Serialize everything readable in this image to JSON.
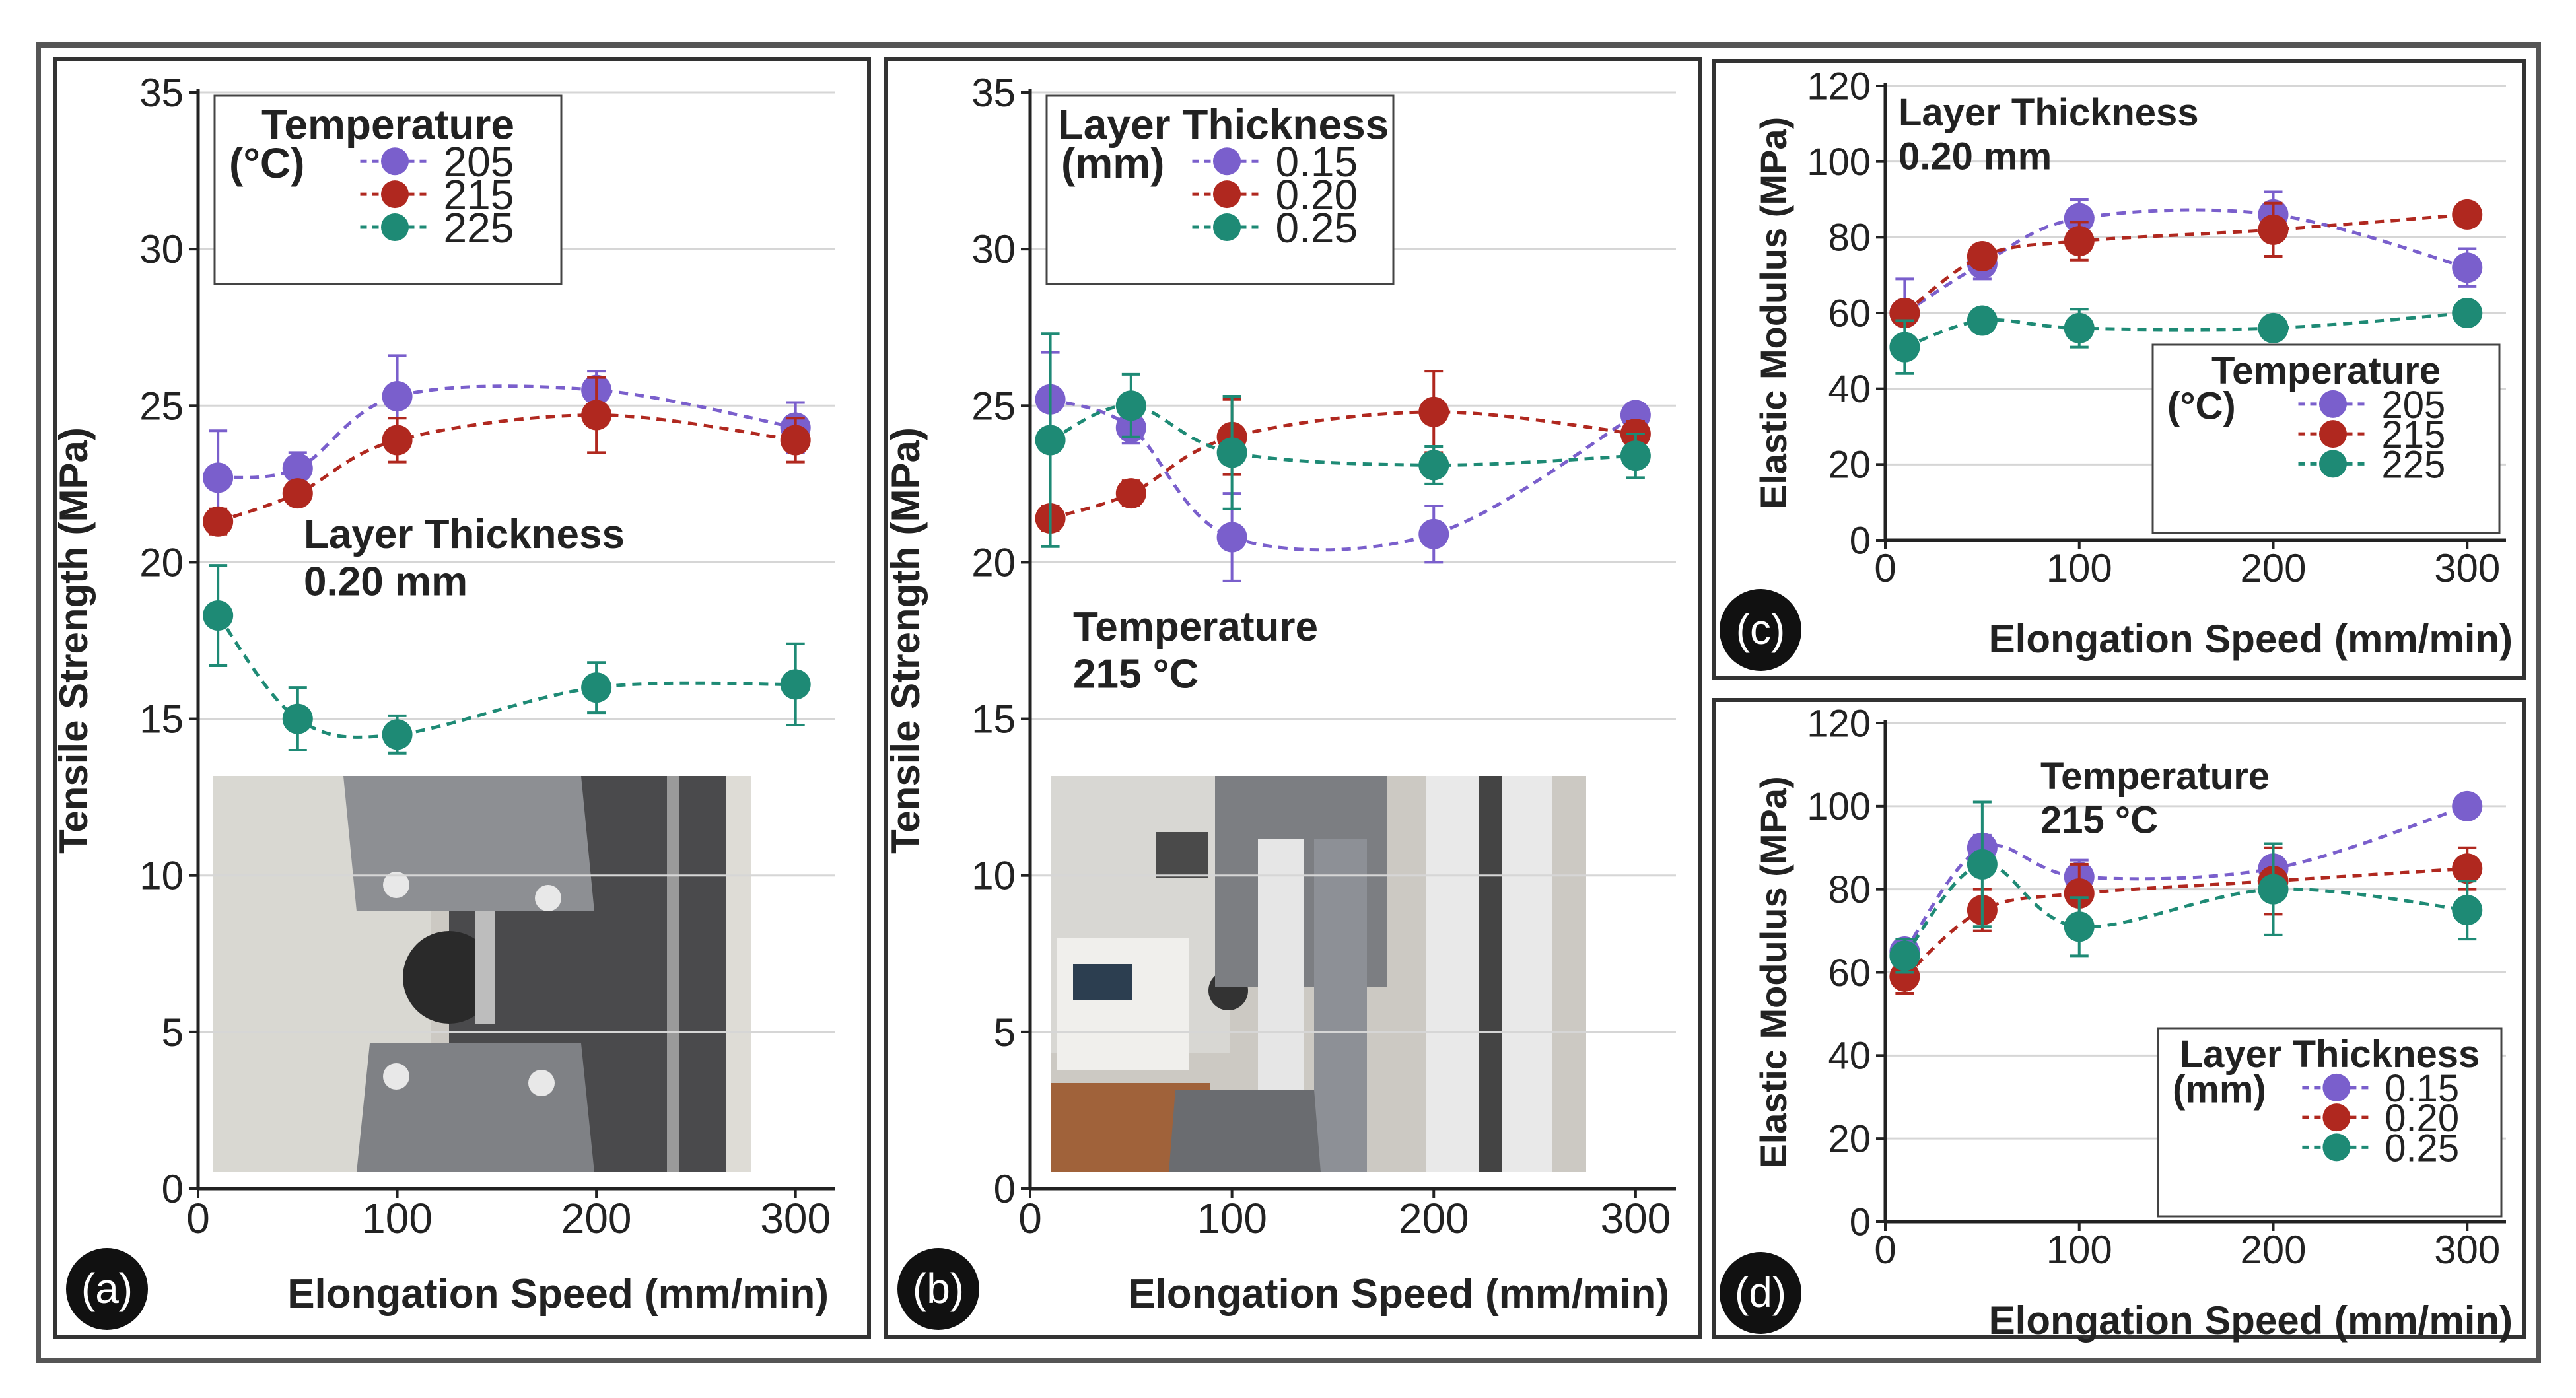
{
  "figure": {
    "panels": [
      "(a)",
      "(b)",
      "(c)",
      "(d)"
    ],
    "photo_captions": [
      "tensile test grips with specimen",
      "tensile testing machine with specimen"
    ]
  },
  "colors": {
    "series_1": "#7a5fcc",
    "series_2": "#b0281f",
    "series_3": "#1e8a75",
    "axis": "#222222",
    "grid": "#d6d6d6",
    "frame": "#333333"
  },
  "chart_data": [
    {
      "type": "line",
      "panel": "(a)",
      "xlabel": "Elongation Speed (mm/min)",
      "ylabel": "Tensile Strength (MPa)",
      "xlim": [
        0,
        320
      ],
      "ylim": [
        0,
        35
      ],
      "xticks": [
        "0",
        "100",
        "200",
        "300"
      ],
      "yticks": [
        "0",
        "5",
        "10",
        "15",
        "20",
        "25",
        "30",
        "35"
      ],
      "legend": {
        "title_lines": [
          "Temperature",
          "(°C)"
        ],
        "labels": [
          "205",
          "215",
          "225"
        ],
        "position": "top-left"
      },
      "annotation": {
        "lines": [
          "Layer Thickness",
          "0.20 mm"
        ],
        "position": "middle-left"
      },
      "inset": "photo",
      "x": [
        10,
        50,
        100,
        200,
        300
      ],
      "series": [
        {
          "name": "205",
          "values": [
            22.7,
            23.0,
            25.3,
            25.5,
            24.3
          ],
          "errors": [
            1.5,
            0.5,
            1.3,
            0.6,
            0.8
          ]
        },
        {
          "name": "215",
          "values": [
            21.3,
            22.2,
            23.9,
            24.7,
            23.9
          ],
          "errors": [
            0.4,
            0.3,
            0.7,
            1.2,
            0.7
          ]
        },
        {
          "name": "225",
          "values": [
            18.3,
            15.0,
            14.5,
            16.0,
            16.1
          ],
          "errors": [
            1.6,
            1.0,
            0.6,
            0.8,
            1.3
          ]
        }
      ]
    },
    {
      "type": "line",
      "panel": "(b)",
      "xlabel": "Elongation Speed (mm/min)",
      "ylabel": "Tensile Strength (MPa)",
      "xlim": [
        0,
        320
      ],
      "ylim": [
        0,
        35
      ],
      "xticks": [
        "0",
        "100",
        "200",
        "300"
      ],
      "yticks": [
        "0",
        "5",
        "10",
        "15",
        "20",
        "25",
        "30",
        "35"
      ],
      "legend": {
        "title_lines": [
          "Layer Thickness",
          "(mm)"
        ],
        "labels": [
          "0.15",
          "0.20",
          "0.25"
        ],
        "position": "top-left"
      },
      "annotation": {
        "lines": [
          "Temperature",
          "215 °C"
        ],
        "position": "middle-left"
      },
      "inset": "photo",
      "x": [
        10,
        50,
        100,
        200,
        300
      ],
      "series": [
        {
          "name": "0.15",
          "values": [
            25.2,
            24.3,
            20.8,
            20.9,
            24.7
          ],
          "errors": [
            1.5,
            0.5,
            1.4,
            0.9,
            0.3
          ]
        },
        {
          "name": "0.20",
          "values": [
            21.4,
            22.2,
            24.0,
            24.8,
            24.1
          ],
          "errors": [
            0.4,
            0.4,
            1.2,
            1.3,
            0.4
          ]
        },
        {
          "name": "0.25",
          "values": [
            23.9,
            25.0,
            23.5,
            23.1,
            23.4
          ],
          "errors": [
            3.4,
            1.0,
            1.8,
            0.6,
            0.7
          ]
        }
      ]
    },
    {
      "type": "line",
      "panel": "(c)",
      "xlabel": "Elongation Speed (mm/min)",
      "ylabel": "Elastic Modulus (MPa)",
      "xlim": [
        0,
        320
      ],
      "ylim": [
        0,
        120
      ],
      "xticks": [
        "0",
        "100",
        "200",
        "300"
      ],
      "yticks": [
        "0",
        "20",
        "40",
        "60",
        "80",
        "100",
        "120"
      ],
      "legend": {
        "title_lines": [
          "Temperature",
          "(°C)"
        ],
        "labels": [
          "205",
          "215",
          "225"
        ],
        "position": "bottom-right"
      },
      "annotation": {
        "lines": [
          "Layer Thickness",
          "0.20 mm"
        ],
        "position": "top-left"
      },
      "x": [
        10,
        50,
        100,
        200,
        300
      ],
      "series": [
        {
          "name": "205",
          "values": [
            60,
            73,
            85,
            86,
            72
          ],
          "errors": [
            9,
            4,
            5,
            6,
            5
          ]
        },
        {
          "name": "215",
          "values": [
            60,
            75,
            79,
            82,
            86
          ],
          "errors": [
            2,
            3,
            5,
            7,
            3
          ]
        },
        {
          "name": "225",
          "values": [
            51,
            58,
            56,
            56,
            60
          ],
          "errors": [
            7,
            2,
            5,
            2,
            2
          ]
        }
      ]
    },
    {
      "type": "line",
      "panel": "(d)",
      "xlabel": "Elongation Speed (mm/min)",
      "ylabel": "Elastic Modulus (MPa)",
      "xlim": [
        0,
        320
      ],
      "ylim": [
        0,
        120
      ],
      "xticks": [
        "0",
        "100",
        "200",
        "300"
      ],
      "yticks": [
        "0",
        "20",
        "40",
        "60",
        "80",
        "100",
        "120"
      ],
      "legend": {
        "title_lines": [
          "Layer Thickness",
          "(mm)"
        ],
        "labels": [
          "0.15",
          "0.20",
          "0.25"
        ],
        "position": "bottom-right"
      },
      "annotation": {
        "lines": [
          "Temperature",
          "215 °C"
        ],
        "position": "top-center"
      },
      "x": [
        10,
        50,
        100,
        200,
        300
      ],
      "series": [
        {
          "name": "0.15",
          "values": [
            65,
            90,
            83,
            85,
            100
          ],
          "errors": [
            2,
            3,
            4,
            6,
            1
          ]
        },
        {
          "name": "0.20",
          "values": [
            59,
            75,
            79,
            82,
            85
          ],
          "errors": [
            4,
            5,
            7,
            8,
            5
          ]
        },
        {
          "name": "0.25",
          "values": [
            64,
            86,
            71,
            80,
            75
          ],
          "errors": [
            4,
            15,
            7,
            11,
            7
          ]
        }
      ]
    }
  ]
}
